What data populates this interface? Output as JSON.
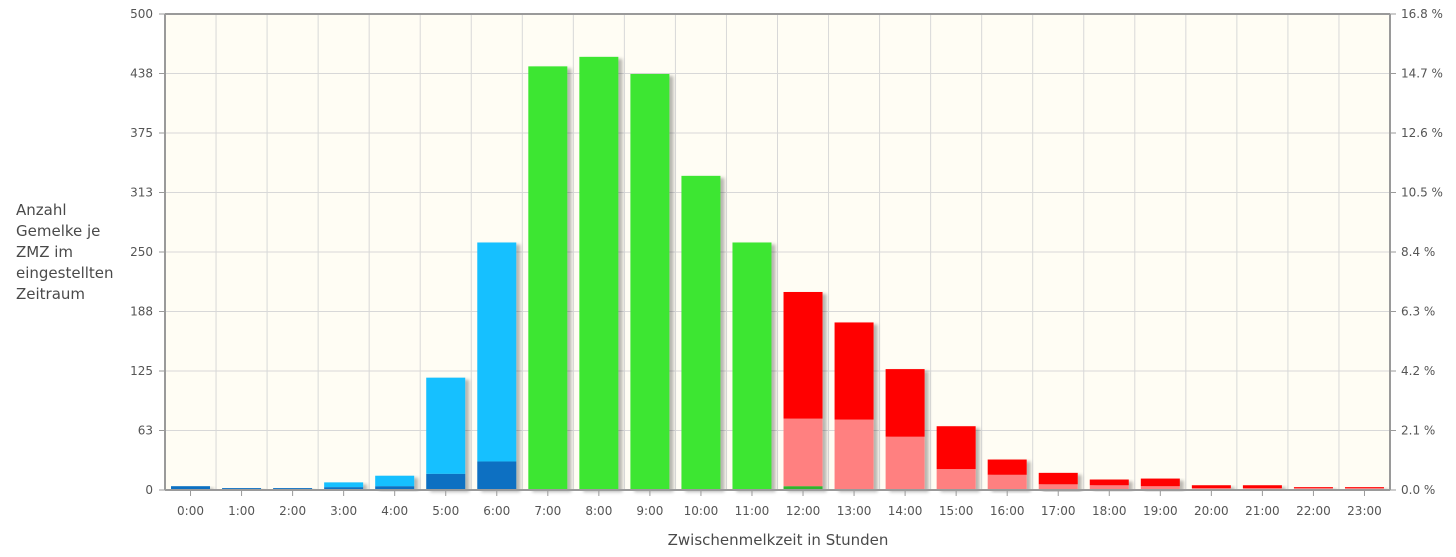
{
  "chart_data": {
    "type": "bar",
    "stacked": true,
    "xlabel": "Zwischenmelkzeit in Stunden",
    "ylabel_lines": [
      "Anzahl",
      "Gemelke je",
      "ZMZ im",
      "eingestellten",
      "Zeitraum"
    ],
    "categories": [
      "0:00",
      "1:00",
      "2:00",
      "3:00",
      "4:00",
      "5:00",
      "6:00",
      "7:00",
      "8:00",
      "9:00",
      "10:00",
      "11:00",
      "12:00",
      "13:00",
      "14:00",
      "15:00",
      "16:00",
      "17:00",
      "18:00",
      "19:00",
      "20:00",
      "21:00",
      "22:00",
      "23:00"
    ],
    "ylim": [
      0,
      500
    ],
    "y_ticks": [
      "0",
      "63",
      "125",
      "188",
      "250",
      "313",
      "375",
      "438",
      "500"
    ],
    "y2_ticks": [
      "0.0 %",
      "2.1 %",
      "4.2 %",
      "6.3 %",
      "8.4 %",
      "10.5 %",
      "12.6 %",
      "14.7 %",
      "16.8 %"
    ],
    "grid": true,
    "series": [
      {
        "color": "#0a6fc2",
        "values": [
          4,
          2,
          2,
          3,
          4,
          17,
          30,
          0,
          0,
          0,
          0,
          0,
          0,
          0,
          0,
          0,
          0,
          0,
          0,
          0,
          0,
          0,
          0,
          0
        ]
      },
      {
        "color": "#12c0ff",
        "values": [
          0,
          0,
          0,
          5,
          11,
          101,
          230,
          0,
          0,
          0,
          0,
          0,
          0,
          0,
          0,
          0,
          0,
          0,
          0,
          0,
          0,
          0,
          0,
          0
        ]
      },
      {
        "color": "#2fb52f",
        "values": [
          0,
          0,
          0,
          0,
          0,
          0,
          0,
          0,
          0,
          0,
          0,
          0,
          4,
          0,
          0,
          0,
          0,
          0,
          0,
          0,
          0,
          0,
          0,
          0
        ]
      },
      {
        "color": "#3ee632",
        "values": [
          0,
          0,
          0,
          0,
          0,
          0,
          0,
          445,
          455,
          437,
          330,
          260,
          0,
          0,
          0,
          0,
          0,
          0,
          0,
          0,
          0,
          0,
          0,
          0
        ]
      },
      {
        "color": "#ff8080",
        "values": [
          0,
          0,
          0,
          0,
          0,
          0,
          0,
          0,
          0,
          0,
          0,
          0,
          71,
          74,
          56,
          22,
          16,
          6,
          5,
          4,
          2,
          2,
          2,
          2
        ]
      },
      {
        "color": "#ff0000",
        "values": [
          0,
          0,
          0,
          0,
          0,
          0,
          0,
          0,
          0,
          0,
          0,
          0,
          133,
          102,
          71,
          45,
          16,
          12,
          6,
          8,
          3,
          3,
          1,
          1
        ]
      }
    ]
  }
}
